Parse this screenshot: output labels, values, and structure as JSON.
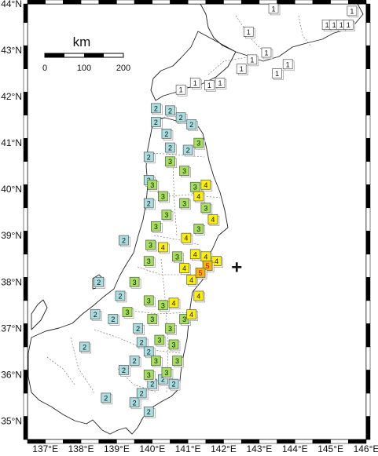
{
  "map": {
    "lon_labels": [
      "137°E",
      "138°E",
      "139°E",
      "140°E",
      "141°E",
      "142°E",
      "143°E",
      "144°E",
      "145°E",
      "146°E"
    ],
    "lat_labels": [
      "35°N",
      "36°N",
      "37°N",
      "38°N",
      "39°N",
      "40°N",
      "41°N",
      "42°N",
      "43°N",
      "44°N"
    ],
    "lon_range": [
      136.5,
      146
    ],
    "lat_range": [
      34.6,
      44
    ],
    "epicenter": {
      "lon": 142.37,
      "lat": 38.32,
      "symbol": "+"
    },
    "scale_bar": {
      "unit": "km",
      "ticks": [
        "0",
        "100",
        "200"
      ]
    },
    "colors": {
      "1": "#ffffff",
      "2": "#a9dde0",
      "3": "#a4e05a",
      "4": "#fff000",
      "5": "#f5b400",
      "coast": "#222222",
      "prefecture": "#555555"
    }
  },
  "intensity_symbols": [
    {
      "v": "1",
      "lon": 142.7,
      "lat": 43.4
    },
    {
      "v": "1",
      "lon": 143.4,
      "lat": 43.9
    },
    {
      "v": "1",
      "lon": 144.9,
      "lat": 43.55
    },
    {
      "v": "1",
      "lon": 145.1,
      "lat": 43.55
    },
    {
      "v": "1",
      "lon": 145.3,
      "lat": 43.55
    },
    {
      "v": "1",
      "lon": 145.5,
      "lat": 43.55
    },
    {
      "v": "1",
      "lon": 145.6,
      "lat": 43.85
    },
    {
      "v": "1",
      "lon": 143.2,
      "lat": 42.95
    },
    {
      "v": "1",
      "lon": 142.8,
      "lat": 42.8
    },
    {
      "v": "1",
      "lon": 142.5,
      "lat": 42.6
    },
    {
      "v": "1",
      "lon": 143.5,
      "lat": 42.5
    },
    {
      "v": "1",
      "lon": 143.8,
      "lat": 42.7
    },
    {
      "v": "1",
      "lon": 141.9,
      "lat": 42.3
    },
    {
      "v": "1",
      "lon": 141.6,
      "lat": 42.25
    },
    {
      "v": "1",
      "lon": 141.2,
      "lat": 42.3
    },
    {
      "v": "1",
      "lon": 140.8,
      "lat": 42.15
    },
    {
      "v": "2",
      "lon": 140.1,
      "lat": 41.75
    },
    {
      "v": "2",
      "lon": 140.5,
      "lat": 41.7
    },
    {
      "v": "2",
      "lon": 140.8,
      "lat": 41.55
    },
    {
      "v": "2",
      "lon": 141.1,
      "lat": 41.4
    },
    {
      "v": "2",
      "lon": 140.1,
      "lat": 41.45
    },
    {
      "v": "2",
      "lon": 140.4,
      "lat": 41.2
    },
    {
      "v": "2",
      "lon": 139.9,
      "lat": 40.7
    },
    {
      "v": "2",
      "lon": 140.5,
      "lat": 40.9
    },
    {
      "v": "2",
      "lon": 141.0,
      "lat": 40.85
    },
    {
      "v": "2",
      "lon": 139.9,
      "lat": 40.2
    },
    {
      "v": "2",
      "lon": 139.9,
      "lat": 39.7
    },
    {
      "v": "2",
      "lon": 139.2,
      "lat": 38.9
    },
    {
      "v": "2",
      "lon": 138.5,
      "lat": 38.0
    },
    {
      "v": "2",
      "lon": 138.4,
      "lat": 37.3
    },
    {
      "v": "2",
      "lon": 138.1,
      "lat": 36.6
    },
    {
      "v": "2",
      "lon": 139.2,
      "lat": 36.1
    },
    {
      "v": "2",
      "lon": 138.7,
      "lat": 35.5
    },
    {
      "v": "2",
      "lon": 139.5,
      "lat": 35.4
    },
    {
      "v": "2",
      "lon": 139.7,
      "lat": 35.6
    },
    {
      "v": "2",
      "lon": 140.0,
      "lat": 35.8
    },
    {
      "v": "2",
      "lon": 140.3,
      "lat": 35.9
    },
    {
      "v": "2",
      "lon": 140.6,
      "lat": 35.8
    },
    {
      "v": "2",
      "lon": 139.9,
      "lat": 35.2
    },
    {
      "v": "2",
      "lon": 139.1,
      "lat": 37.7
    },
    {
      "v": "2",
      "lon": 138.9,
      "lat": 37.2
    },
    {
      "v": "2",
      "lon": 139.6,
      "lat": 37.0
    },
    {
      "v": "2",
      "lon": 139.7,
      "lat": 36.7
    },
    {
      "v": "2",
      "lon": 139.9,
      "lat": 36.5
    },
    {
      "v": "2",
      "lon": 139.5,
      "lat": 36.3
    },
    {
      "v": "3",
      "lon": 141.3,
      "lat": 41.0
    },
    {
      "v": "3",
      "lon": 140.5,
      "lat": 40.6
    },
    {
      "v": "3",
      "lon": 140.9,
      "lat": 40.4
    },
    {
      "v": "3",
      "lon": 140.0,
      "lat": 40.1
    },
    {
      "v": "3",
      "lon": 141.2,
      "lat": 40.05
    },
    {
      "v": "3",
      "lon": 140.3,
      "lat": 39.85
    },
    {
      "v": "3",
      "lon": 140.9,
      "lat": 39.7
    },
    {
      "v": "3",
      "lon": 141.5,
      "lat": 39.6
    },
    {
      "v": "3",
      "lon": 140.4,
      "lat": 39.45
    },
    {
      "v": "3",
      "lon": 140.1,
      "lat": 39.2
    },
    {
      "v": "3",
      "lon": 141.3,
      "lat": 39.15
    },
    {
      "v": "3",
      "lon": 139.95,
      "lat": 38.8
    },
    {
      "v": "3",
      "lon": 140.7,
      "lat": 38.55
    },
    {
      "v": "3",
      "lon": 139.9,
      "lat": 38.45
    },
    {
      "v": "3",
      "lon": 139.5,
      "lat": 38.0
    },
    {
      "v": "3",
      "lon": 139.9,
      "lat": 37.6
    },
    {
      "v": "3",
      "lon": 140.3,
      "lat": 37.5
    },
    {
      "v": "3",
      "lon": 139.3,
      "lat": 37.35
    },
    {
      "v": "3",
      "lon": 140.0,
      "lat": 37.2
    },
    {
      "v": "3",
      "lon": 140.5,
      "lat": 37.0
    },
    {
      "v": "3",
      "lon": 140.9,
      "lat": 37.2
    },
    {
      "v": "3",
      "lon": 140.2,
      "lat": 36.75
    },
    {
      "v": "3",
      "lon": 140.6,
      "lat": 36.65
    },
    {
      "v": "3",
      "lon": 140.1,
      "lat": 36.3
    },
    {
      "v": "3",
      "lon": 140.4,
      "lat": 36.05
    },
    {
      "v": "3",
      "lon": 139.9,
      "lat": 36.0
    },
    {
      "v": "3",
      "lon": 140.7,
      "lat": 36.3
    },
    {
      "v": "4",
      "lon": 141.5,
      "lat": 40.1
    },
    {
      "v": "4",
      "lon": 141.3,
      "lat": 39.85
    },
    {
      "v": "4",
      "lon": 141.7,
      "lat": 39.35
    },
    {
      "v": "4",
      "lon": 140.95,
      "lat": 38.95
    },
    {
      "v": "4",
      "lon": 141.2,
      "lat": 38.6
    },
    {
      "v": "4",
      "lon": 141.5,
      "lat": 38.55
    },
    {
      "v": "4",
      "lon": 141.8,
      "lat": 38.45
    },
    {
      "v": "4",
      "lon": 140.9,
      "lat": 38.3
    },
    {
      "v": "4",
      "lon": 141.1,
      "lat": 38.05
    },
    {
      "v": "4",
      "lon": 141.3,
      "lat": 37.7
    },
    {
      "v": "4",
      "lon": 140.6,
      "lat": 37.55
    },
    {
      "v": "4",
      "lon": 141.1,
      "lat": 37.3
    },
    {
      "v": "4",
      "lon": 140.3,
      "lat": 38.75
    },
    {
      "v": "5",
      "lon": 141.55,
      "lat": 38.35
    },
    {
      "v": "5",
      "lon": 141.35,
      "lat": 38.2
    }
  ]
}
